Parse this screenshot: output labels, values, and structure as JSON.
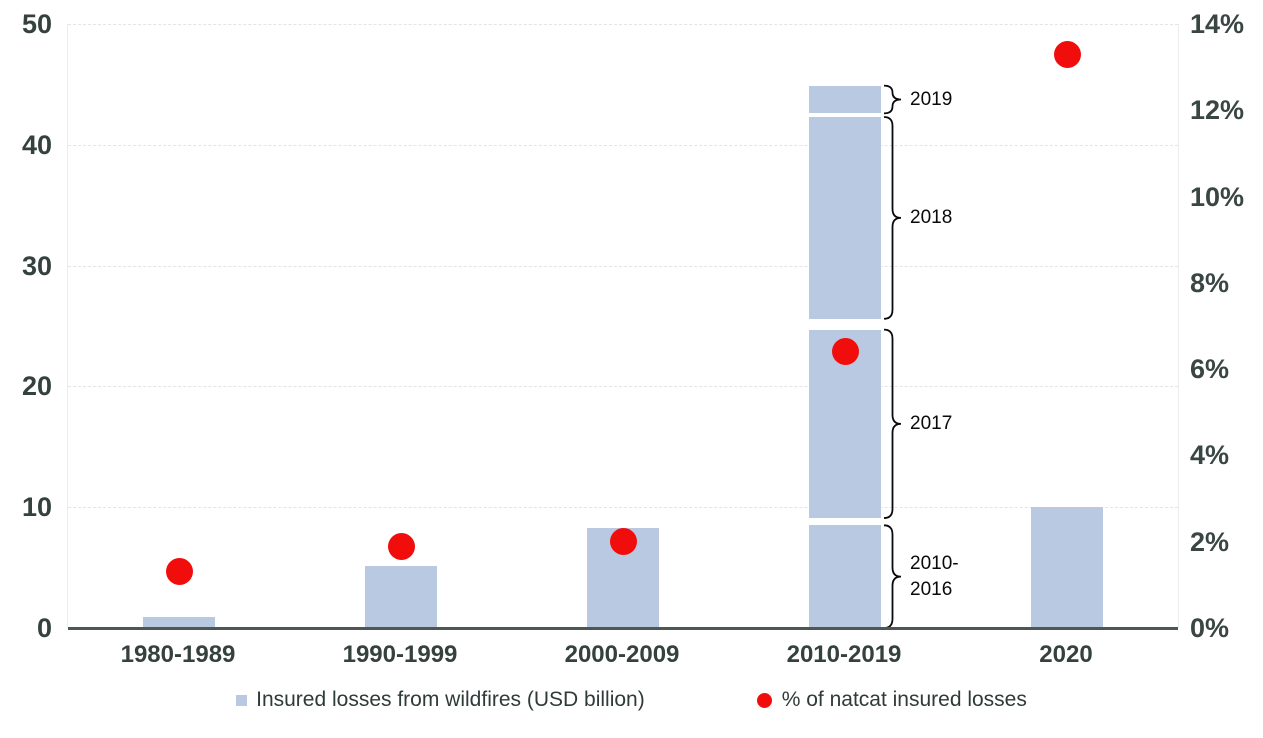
{
  "chart_data": {
    "type": "bar",
    "subtype": "column chart with secondary-axis scatter dots",
    "categories": [
      "1980-1989",
      "1990-1999",
      "2000-2009",
      "2010-2019",
      "2020"
    ],
    "series": [
      {
        "name": "Insured losses from wildfires (USD billion)",
        "type": "bar",
        "axis": "left",
        "color": "#b9c9e1",
        "values": [
          0.9,
          5.1,
          8.3,
          44.9,
          10.0
        ]
      },
      {
        "name": "% of natcat insured losses",
        "type": "scatter",
        "axis": "right",
        "color": "#f20d0d",
        "values_pct": [
          1.3,
          1.9,
          2.0,
          6.4,
          13.3
        ]
      }
    ],
    "stacked_segments": {
      "category": "2010-2019",
      "category_index": 3,
      "segments": [
        {
          "label": "2010-2016",
          "label_lines": [
            "2010-",
            "2016"
          ],
          "from": 0,
          "to": 8.5
        },
        {
          "label": "2017",
          "label_lines": [
            "2017"
          ],
          "from": 9.1,
          "to": 24.7
        },
        {
          "label": "2018",
          "label_lines": [
            "2018"
          ],
          "from": 25.6,
          "to": 42.3
        },
        {
          "label": "2019",
          "label_lines": [
            "2019"
          ],
          "from": 42.6,
          "to": 44.9
        }
      ]
    },
    "left_axis": {
      "min": 0,
      "max": 50,
      "tick_values": [
        0,
        10,
        20,
        30,
        40,
        50
      ],
      "tick_labels": [
        "0",
        "10",
        "20",
        "30",
        "40",
        "50"
      ]
    },
    "right_axis": {
      "min": 0,
      "max": 14,
      "tick_values": [
        0,
        2,
        4,
        6,
        8,
        10,
        12,
        14
      ],
      "tick_labels": [
        "0%",
        "2%",
        "4%",
        "6%",
        "8%",
        "10%",
        "12%",
        "14%"
      ]
    },
    "grid": "horizontal dashed light gray",
    "legend_position": "bottom",
    "legend": {
      "items": [
        {
          "label": "Insured losses from wildfires (USD billion)",
          "swatch": "square",
          "color": "#b9c9e1"
        },
        {
          "label": "% of natcat insured losses",
          "swatch": "dot",
          "color": "#f20d0d"
        }
      ]
    },
    "colors": {
      "bar": "#b9c9e1",
      "dot": "#f20d0d",
      "axis_line": "#4b5853",
      "axis_text": "#35413e",
      "gridline": "#e4e4e4",
      "annotation_text": "#0a0a0a"
    }
  }
}
